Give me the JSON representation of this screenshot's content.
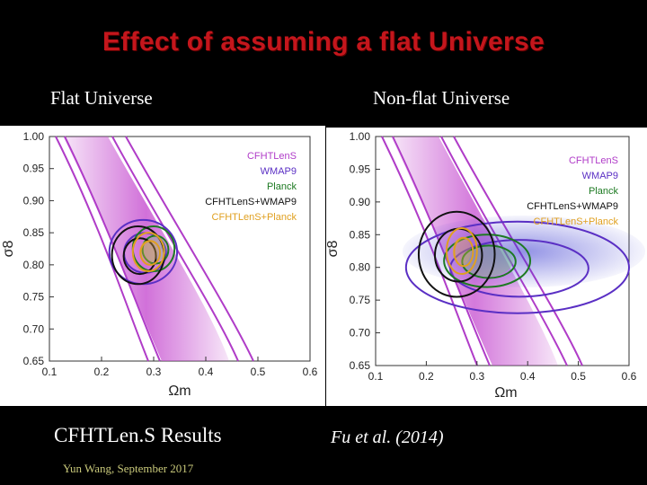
{
  "title": "Effect of assuming a flat Universe",
  "subtitle_left": "Flat Universe",
  "subtitle_right": "Non-flat Universe",
  "caption_left": "CFHTLen.S Results",
  "caption_right": "Fu et al. (2014)",
  "footer": "Yun Wang, September 2017",
  "colors": {
    "title": "#c4161c",
    "CFHTLenS": "#b03cc8",
    "WMAP9": "#5a2fc4",
    "Planck": "#1d7a22",
    "CFHTLenS+WMAP9": "#111111",
    "CFHTLenS+Planck": "#e0a020"
  },
  "chart_data": [
    {
      "type": "scatter",
      "subtype": "confidence-contours",
      "title": "Flat Universe",
      "xlabel": "Ωm",
      "ylabel": "σ8",
      "xlim": [
        0.1,
        0.6
      ],
      "ylim": [
        0.65,
        1.0
      ],
      "x_ticks": [
        "0.1",
        "0.2",
        "0.3",
        "0.4",
        "0.5",
        "0.6"
      ],
      "y_ticks": [
        "0.65",
        "0.70",
        "0.75",
        "0.80",
        "0.85",
        "0.90",
        "0.95",
        "1.00"
      ],
      "legend": [
        "CFHTLenS",
        "WMAP9",
        "Planck",
        "CFHTLenS+WMAP9",
        "CFHTLenS+Planck"
      ],
      "legend_position": "top-right",
      "series": [
        {
          "name": "CFHTLenS",
          "center": [
            0.3,
            0.8
          ],
          "sigma8_omegam_degeneracy": "banana"
        },
        {
          "name": "WMAP9",
          "center": [
            0.28,
            0.82
          ],
          "radii": [
            0.065,
            0.05
          ]
        },
        {
          "name": "Planck",
          "center": [
            0.3,
            0.825
          ],
          "radii": [
            0.04,
            0.035
          ]
        },
        {
          "name": "CFHTLenS+WMAP9",
          "center": [
            0.27,
            0.815
          ],
          "radii": [
            0.05,
            0.045
          ]
        },
        {
          "name": "CFHTLenS+Planck",
          "center": [
            0.29,
            0.82
          ],
          "radii": [
            0.03,
            0.03
          ]
        }
      ]
    },
    {
      "type": "scatter",
      "subtype": "confidence-contours",
      "title": "Non-flat Universe",
      "xlabel": "Ωm",
      "ylabel": "σ8",
      "xlim": [
        0.1,
        0.6
      ],
      "ylim": [
        0.65,
        1.0
      ],
      "x_ticks": [
        "0.1",
        "0.2",
        "0.3",
        "0.4",
        "0.5",
        "0.6"
      ],
      "y_ticks": [
        "0.65",
        "0.70",
        "0.75",
        "0.80",
        "0.85",
        "0.90",
        "0.95",
        "1.00"
      ],
      "legend": [
        "CFHTLenS",
        "WMAP9",
        "Planck",
        "CFHTLenS+WMAP9",
        "CFHTLenS+Planck"
      ],
      "legend_position": "top-right",
      "series": [
        {
          "name": "CFHTLenS",
          "center": [
            0.3,
            0.8
          ],
          "sigma8_omegam_degeneracy": "banana"
        },
        {
          "name": "WMAP9",
          "center": [
            0.38,
            0.8
          ],
          "radii": [
            0.22,
            0.07
          ]
        },
        {
          "name": "Planck",
          "center": [
            0.32,
            0.81
          ],
          "radii": [
            0.085,
            0.04
          ]
        },
        {
          "name": "CFHTLenS+WMAP9",
          "center": [
            0.26,
            0.82
          ],
          "radii": [
            0.075,
            0.065
          ]
        },
        {
          "name": "CFHTLenS+Planck",
          "center": [
            0.27,
            0.825
          ],
          "radii": [
            0.03,
            0.035
          ]
        }
      ]
    }
  ]
}
